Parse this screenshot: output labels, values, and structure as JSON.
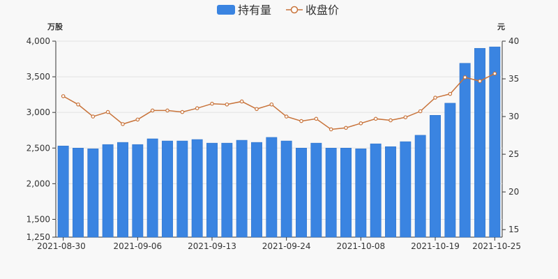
{
  "chart_data": {
    "type": "bar",
    "legend": {
      "position": "top-center"
    },
    "left_axis_unit": "万股",
    "right_axis_unit": "元",
    "left_axis": {
      "min": 1250,
      "max": 4000,
      "ticks": [
        1250,
        1500,
        2000,
        2500,
        3000,
        3500,
        4000
      ],
      "tick_labels": [
        "1,250",
        "1,500",
        "2,000",
        "2,500",
        "3,000",
        "3,500",
        "4,000"
      ]
    },
    "right_axis": {
      "min": 14,
      "max": 40,
      "ticks": [
        15,
        20,
        25,
        30,
        35,
        40
      ],
      "tick_labels": [
        "15",
        "20",
        "25",
        "30",
        "35",
        "40"
      ]
    },
    "x_tick_labels": [
      {
        "index": 0,
        "label": "2021-08-30"
      },
      {
        "index": 5,
        "label": "2021-09-06"
      },
      {
        "index": 10,
        "label": "2021-09-13"
      },
      {
        "index": 15,
        "label": "2021-09-24"
      },
      {
        "index": 20,
        "label": "2021-10-08"
      },
      {
        "index": 25,
        "label": "2021-10-19"
      },
      {
        "index": 29,
        "label": "2021-10-25"
      }
    ],
    "series": [
      {
        "name": "持有量",
        "kind": "bar",
        "axis": "left",
        "color": "#3a84e1",
        "values": [
          2530,
          2500,
          2490,
          2550,
          2580,
          2550,
          2630,
          2600,
          2600,
          2620,
          2570,
          2570,
          2610,
          2580,
          2650,
          2600,
          2500,
          2570,
          2500,
          2500,
          2490,
          2560,
          2520,
          2590,
          2680,
          2960,
          3130,
          3690,
          3900,
          3920
        ]
      },
      {
        "name": "收盘价",
        "kind": "line",
        "axis": "right",
        "color": "#c8733a",
        "values": [
          32.7,
          31.6,
          30.0,
          30.6,
          29.0,
          29.6,
          30.8,
          30.8,
          30.6,
          31.1,
          31.7,
          31.6,
          32.0,
          31.0,
          31.6,
          30.0,
          29.4,
          29.7,
          28.3,
          28.5,
          29.1,
          29.7,
          29.5,
          29.9,
          30.7,
          32.5,
          33.0,
          35.2,
          34.7,
          35.7
        ]
      }
    ]
  }
}
